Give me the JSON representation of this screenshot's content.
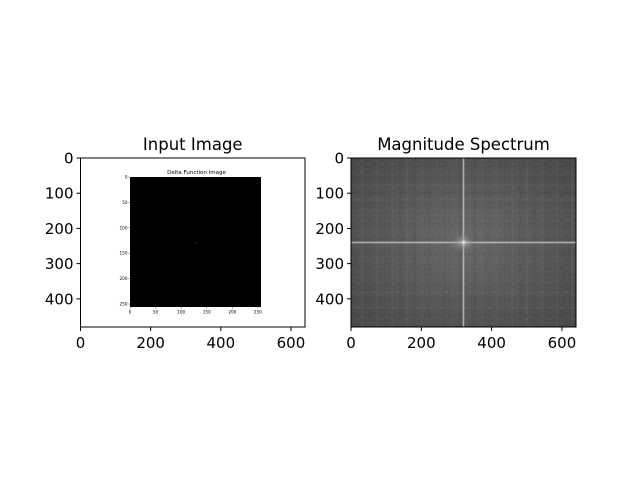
{
  "chart_data": [
    {
      "type": "heatmap",
      "title": "Input Image",
      "xlabel": "",
      "ylabel": "",
      "xlim": [
        0,
        640
      ],
      "ylim": [
        480,
        0
      ],
      "xticks": [
        0,
        200,
        400,
        600
      ],
      "yticks": [
        0,
        100,
        200,
        300,
        400
      ],
      "inner_image": {
        "title": "Delta Function Image",
        "xlim": [
          0,
          256
        ],
        "ylim": [
          256,
          0
        ],
        "xticks": [
          0,
          50,
          100,
          150,
          200,
          250
        ],
        "yticks": [
          0,
          50,
          100,
          150,
          200,
          250
        ],
        "background": "#000000",
        "delta_at": [
          128,
          128
        ]
      }
    },
    {
      "type": "heatmap",
      "title": "Magnitude Spectrum",
      "xlabel": "",
      "ylabel": "",
      "xlim": [
        0,
        640
      ],
      "ylim": [
        480,
        0
      ],
      "xticks": [
        0,
        200,
        400,
        600
      ],
      "yticks": [
        0,
        100,
        200,
        300,
        400
      ],
      "center": [
        320,
        240
      ],
      "base_color": "#5c5c5c",
      "bright_color": "#f0f0f0"
    }
  ]
}
